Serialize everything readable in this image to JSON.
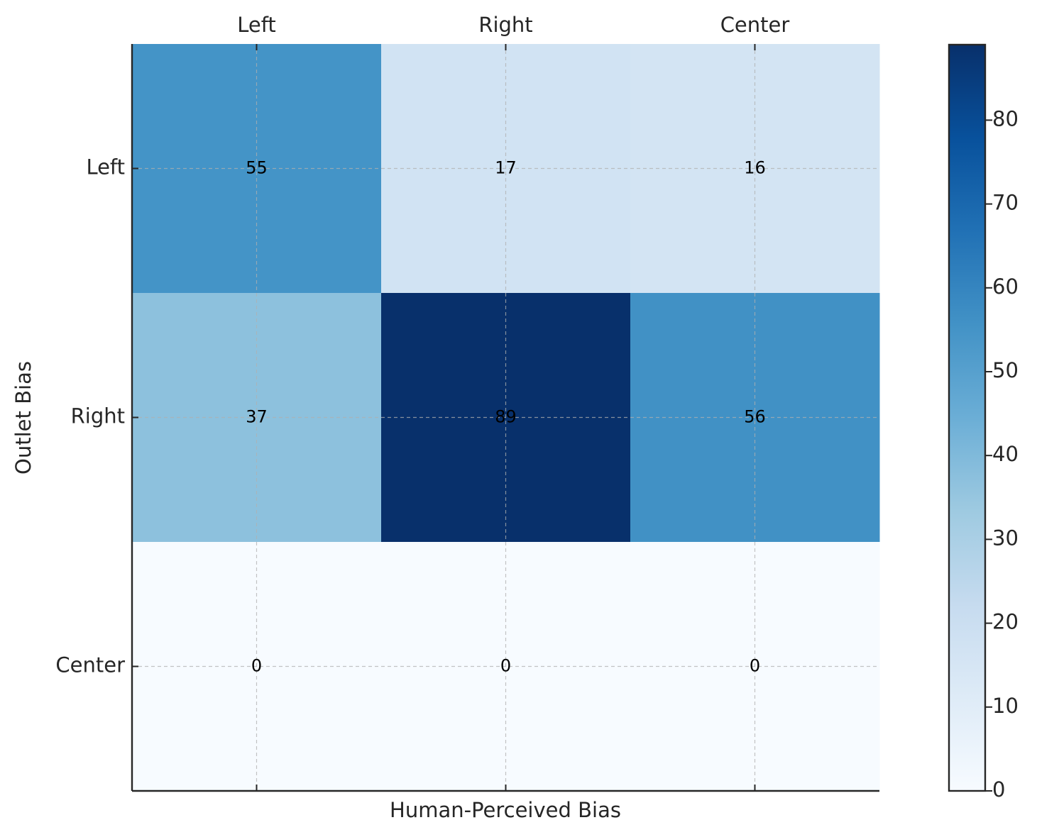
{
  "chart_data": {
    "type": "heatmap",
    "title": "",
    "xlabel": "Human-Perceived Bias",
    "ylabel": "Outlet Bias",
    "x_categories": [
      "Left",
      "Right",
      "Center"
    ],
    "y_categories": [
      "Left",
      "Right",
      "Center"
    ],
    "values": [
      [
        55,
        17,
        16
      ],
      [
        37,
        89,
        56
      ],
      [
        0,
        0,
        0
      ]
    ],
    "colormap": "Blues",
    "color_range": [
      0,
      89
    ],
    "colorbar_ticks": [
      "0",
      "10",
      "20",
      "30",
      "40",
      "50",
      "60",
      "70",
      "80"
    ],
    "grid": true,
    "x_tick_position": "top"
  }
}
